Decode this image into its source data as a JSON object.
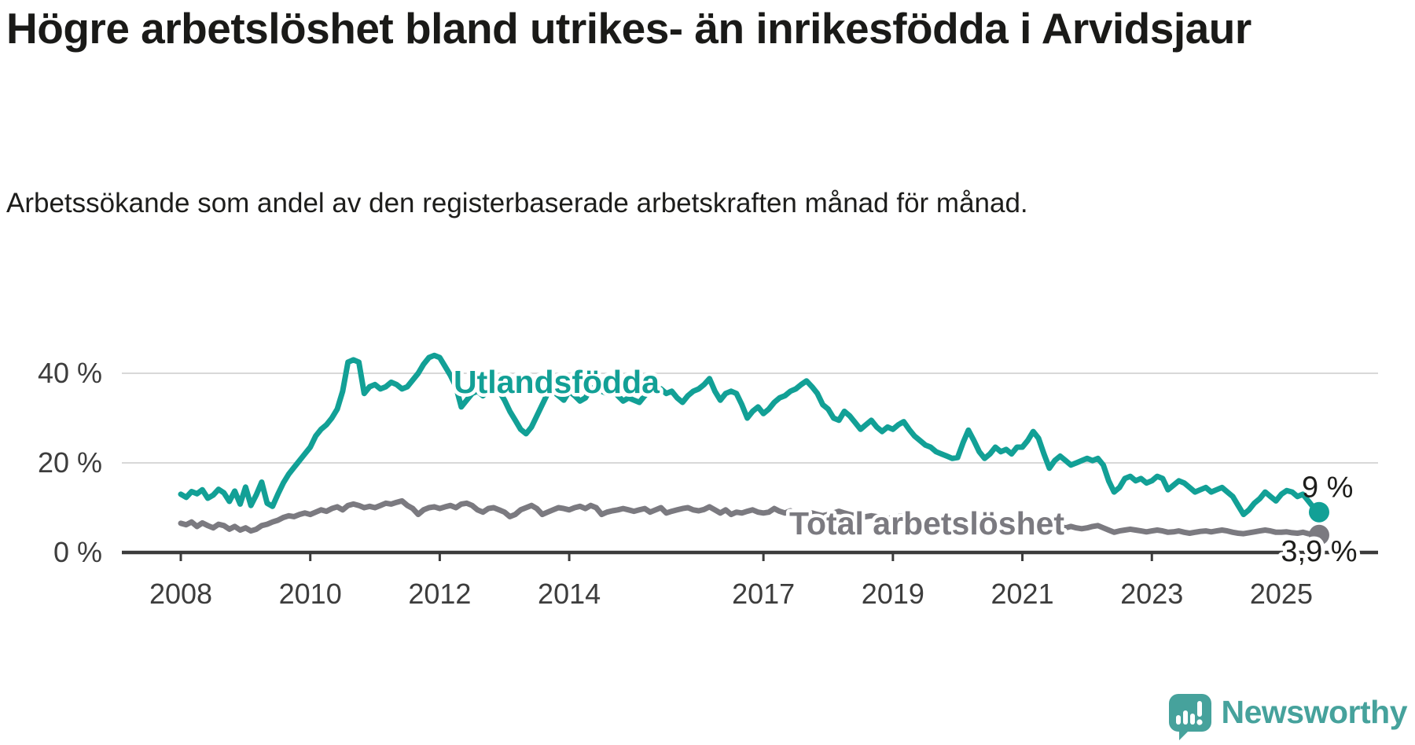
{
  "header": {
    "title": "Högre arbetslöshet bland utrikes- än inrikesfödda i Arvidsjaur",
    "subtitle": "Arbetssökande som andel av den registerbaserade arbetskraften månad för månad."
  },
  "branding": {
    "name": "Newsworthy",
    "logo_icon": "bar-chart-speech-bubble-icon",
    "logo_color": "#46a29c"
  },
  "colors": {
    "foreign_born_line": "#12a096",
    "total_line": "#7b7a80",
    "gridline": "#d8d8d8",
    "axis": "#3b3b3b",
    "axis_text": "#3d3d3d",
    "annotation_text": "#1d1d1b",
    "background": "#ffffff"
  },
  "chart_data": {
    "type": "line",
    "x_unit": "month",
    "x_start": "2008-01",
    "x_end": "2025-08",
    "grid": "horizontal",
    "legend_position": "inline-labels",
    "ylim": [
      0,
      46
    ],
    "y_ticks": [
      {
        "value": 40,
        "label": "40 %"
      },
      {
        "value": 20,
        "label": "20 %"
      },
      {
        "value": 0,
        "label": "0 %"
      }
    ],
    "x_ticks": [
      {
        "year": 2008,
        "label": "2008"
      },
      {
        "year": 2010,
        "label": "2010"
      },
      {
        "year": 2012,
        "label": "2012"
      },
      {
        "year": 2014,
        "label": "2014"
      },
      {
        "year": 2017,
        "label": "2017"
      },
      {
        "year": 2019,
        "label": "2019"
      },
      {
        "year": 2021,
        "label": "2021"
      },
      {
        "year": 2023,
        "label": "2023"
      },
      {
        "year": 2025,
        "label": "2025"
      }
    ],
    "series": [
      {
        "id": "utlandsfodda",
        "name": "Utlandsfödda",
        "color": "#12a096",
        "end_value": 9,
        "end_label": "9 %",
        "values": [
          13.0,
          12.3,
          13.6,
          13.1,
          14.0,
          12.1,
          12.8,
          14.1,
          13.3,
          11.4,
          13.7,
          10.8,
          14.6,
          10.5,
          12.9,
          15.7,
          11.0,
          10.3,
          13.0,
          15.5,
          17.5,
          19.0,
          20.5,
          22.0,
          23.5,
          26.0,
          27.5,
          28.5,
          30.0,
          32.0,
          36.0,
          42.5,
          43.0,
          42.5,
          35.5,
          37.0,
          37.5,
          36.5,
          37.0,
          38.0,
          37.5,
          36.5,
          37.0,
          38.5,
          40.0,
          42.0,
          43.5,
          44.0,
          43.5,
          41.5,
          39.5,
          37.0,
          32.5,
          34.0,
          35.5,
          36.0,
          35.0,
          36.0,
          35.5,
          36.0,
          34.0,
          31.5,
          29.5,
          27.5,
          26.5,
          28.0,
          30.5,
          33.0,
          35.5,
          36.0,
          35.0,
          34.0,
          36.0,
          35.0,
          33.8,
          34.5,
          36.5,
          37.0,
          36.0,
          35.5,
          36.5,
          35.0,
          33.8,
          34.5,
          34.0,
          33.5,
          35.0,
          36.0,
          37.0,
          36.5,
          35.5,
          36.0,
          34.5,
          33.5,
          35.0,
          36.0,
          36.5,
          37.5,
          38.8,
          36.0,
          34.0,
          35.5,
          36.0,
          35.5,
          33.0,
          30.0,
          31.5,
          32.5,
          31.0,
          32.0,
          33.5,
          34.5,
          35.0,
          36.0,
          36.5,
          37.5,
          38.3,
          37.0,
          35.5,
          33.0,
          32.0,
          30.0,
          29.5,
          31.5,
          30.5,
          29.0,
          27.5,
          28.5,
          29.5,
          28.0,
          27.0,
          28.0,
          27.5,
          28.5,
          29.2,
          27.5,
          26.0,
          25.0,
          24.0,
          23.5,
          22.5,
          22.0,
          21.5,
          21.0,
          21.2,
          24.5,
          27.3,
          25.0,
          22.5,
          21.0,
          22.0,
          23.5,
          22.5,
          23.0,
          22.0,
          23.5,
          23.5,
          25.0,
          27.0,
          25.5,
          22.0,
          18.8,
          20.5,
          21.5,
          20.5,
          19.5,
          20.0,
          20.5,
          21.0,
          20.5,
          21.0,
          19.5,
          16.0,
          13.5,
          14.5,
          16.5,
          17.0,
          16.0,
          16.5,
          15.5,
          16.0,
          17.0,
          16.5,
          14.0,
          15.0,
          16.0,
          15.5,
          14.5,
          13.5,
          14.0,
          14.5,
          13.5,
          14.0,
          14.5,
          13.5,
          12.5,
          10.5,
          8.5,
          9.5,
          11.0,
          12.0,
          13.5,
          12.5,
          11.5,
          13.0,
          13.8,
          13.5,
          12.5,
          13.0,
          11.5,
          10.0,
          9.0
        ]
      },
      {
        "id": "total-arbetsloshet",
        "name": "Total arbetslöshet",
        "color": "#7b7a80",
        "end_value": 3.9,
        "end_label": "3,9 %",
        "values": [
          6.5,
          6.2,
          6.8,
          5.8,
          6.6,
          6.0,
          5.5,
          6.3,
          6.0,
          5.2,
          5.8,
          5.0,
          5.5,
          4.8,
          5.2,
          6.0,
          6.3,
          6.8,
          7.2,
          7.8,
          8.2,
          8.0,
          8.5,
          8.8,
          8.5,
          9.0,
          9.5,
          9.2,
          9.8,
          10.2,
          9.5,
          10.5,
          10.8,
          10.5,
          10.0,
          10.3,
          10.0,
          10.5,
          11.0,
          10.8,
          11.2,
          11.5,
          10.5,
          9.8,
          8.5,
          9.5,
          10.0,
          10.2,
          9.8,
          10.2,
          10.5,
          10.0,
          10.8,
          11.0,
          10.5,
          9.5,
          9.0,
          9.8,
          10.0,
          9.5,
          9.0,
          8.0,
          8.5,
          9.5,
          10.0,
          10.5,
          9.8,
          8.5,
          9.0,
          9.5,
          10.0,
          9.8,
          9.5,
          10.0,
          10.3,
          9.8,
          10.5,
          10.0,
          8.5,
          9.0,
          9.3,
          9.5,
          9.8,
          9.5,
          9.2,
          9.5,
          9.8,
          9.0,
          9.5,
          10.0,
          8.8,
          9.2,
          9.5,
          9.8,
          10.0,
          9.5,
          9.3,
          9.6,
          10.2,
          9.5,
          8.8,
          9.5,
          8.5,
          9.0,
          8.8,
          9.2,
          9.5,
          9.0,
          8.8,
          9.0,
          9.8,
          9.2,
          8.8,
          9.3,
          8.5,
          8.8,
          9.0,
          8.8,
          8.5,
          8.2,
          8.5,
          8.8,
          9.2,
          8.8,
          8.5,
          8.2,
          7.8,
          8.0,
          8.2,
          8.0,
          7.8,
          7.5,
          7.8,
          8.0,
          8.2,
          7.8,
          7.5,
          7.2,
          7.0,
          7.2,
          7.5,
          7.2,
          7.0,
          6.8,
          7.0,
          7.2,
          7.5,
          7.8,
          7.5,
          7.2,
          7.0,
          6.8,
          6.5,
          6.8,
          6.5,
          6.3,
          6.5,
          6.8,
          7.0,
          6.8,
          6.5,
          6.2,
          6.0,
          5.8,
          5.5,
          5.8,
          5.5,
          5.3,
          5.5,
          5.8,
          6.0,
          5.5,
          5.0,
          4.5,
          4.8,
          5.0,
          5.2,
          5.0,
          4.8,
          4.6,
          4.8,
          5.0,
          4.8,
          4.5,
          4.6,
          4.8,
          4.5,
          4.3,
          4.5,
          4.7,
          4.8,
          4.6,
          4.8,
          5.0,
          4.8,
          4.5,
          4.3,
          4.2,
          4.4,
          4.6,
          4.8,
          5.0,
          4.8,
          4.5,
          4.5,
          4.6,
          4.4,
          4.3,
          4.5,
          4.2,
          4.0,
          3.9
        ]
      }
    ]
  }
}
